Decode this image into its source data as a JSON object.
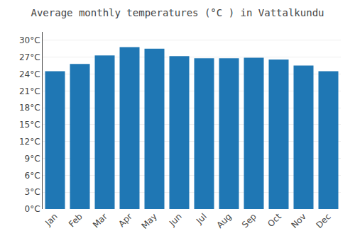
{
  "chart_data": {
    "type": "bar",
    "title": "Average monthly temperatures (°C ) in Vattalkundu",
    "categories": [
      "Jan",
      "Feb",
      "Mar",
      "Apr",
      "May",
      "Jun",
      "Jul",
      "Aug",
      "Sep",
      "Oct",
      "Nov",
      "Dec"
    ],
    "values": [
      24.5,
      25.8,
      27.3,
      28.8,
      28.5,
      27.2,
      26.8,
      26.8,
      26.9,
      26.6,
      25.5,
      24.5
    ],
    "ylim": [
      0,
      31.5
    ],
    "yticks": [
      {
        "value": 0,
        "label": "0°C"
      },
      {
        "value": 3,
        "label": "3°C"
      },
      {
        "value": 6,
        "label": "6°C"
      },
      {
        "value": 9,
        "label": "9°C"
      },
      {
        "value": 12,
        "label": "12°C"
      },
      {
        "value": 15,
        "label": "15°C"
      },
      {
        "value": 18,
        "label": "18°C"
      },
      {
        "value": 21,
        "label": "21°C"
      },
      {
        "value": 24,
        "label": "24°C"
      },
      {
        "value": 27,
        "label": "27°C"
      },
      {
        "value": 30,
        "label": "30°C"
      }
    ],
    "grid": true
  }
}
